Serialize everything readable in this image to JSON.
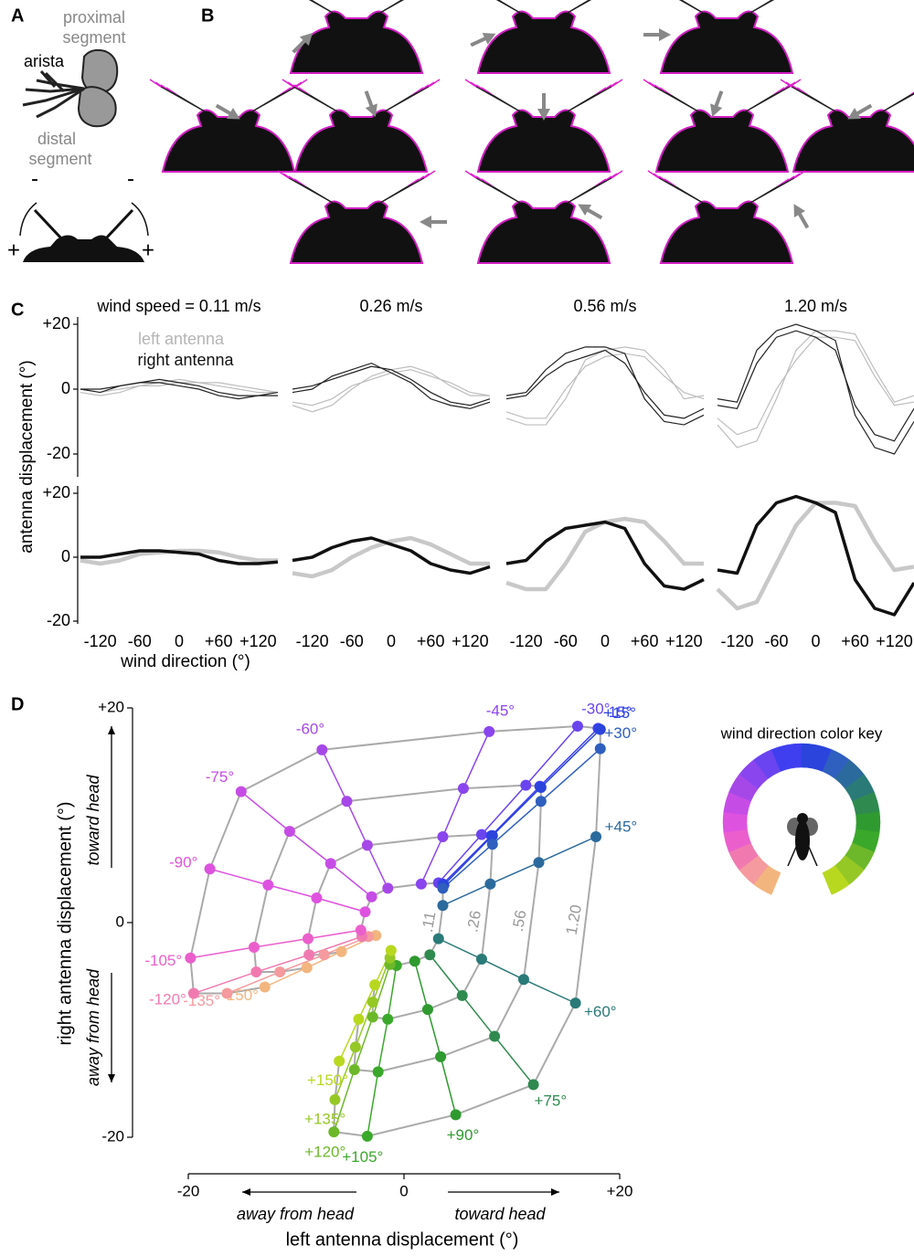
{
  "panel_a": {
    "label": "A",
    "proximal": "proximal",
    "proximal_segment": "segment",
    "arista": "arista",
    "distal": "distal",
    "distal_segment": "segment",
    "signs": [
      "-",
      "-",
      "+",
      "+"
    ]
  },
  "panel_b": {
    "label": "B"
  },
  "panel_c": {
    "label": "C",
    "y_label": "antenna displacement (°)",
    "x_label": "wind direction (°)",
    "legend": [
      {
        "name": "left antenna",
        "color": "#b5b5b5"
      },
      {
        "name": "right antenna",
        "color": "#111111"
      }
    ]
  },
  "chart_data": [
    {
      "type": "line",
      "title": "wind speed = 0.11 m/s",
      "x": [
        -150,
        -120,
        -90,
        -60,
        -30,
        0,
        30,
        60,
        90,
        120,
        150
      ],
      "xlim": [
        -150,
        150
      ],
      "ylim": [
        -20,
        20
      ],
      "xticks": [
        -120,
        -60,
        0,
        {
          "value": 60,
          "label": "+60"
        },
        {
          "value": 120,
          "label": "+120"
        }
      ],
      "yticks": [
        {
          "value": 20,
          "label": "+20"
        },
        0,
        -20
      ],
      "traces": {
        "left": [
          [
            -1,
            -2,
            -1,
            1,
            2,
            3,
            2,
            1,
            0,
            -1,
            -1
          ],
          [
            0,
            -1,
            0,
            1,
            1,
            2,
            2,
            2,
            1,
            0,
            -1
          ]
        ],
        "right": [
          [
            0,
            0,
            1,
            2,
            3,
            2,
            1,
            -1,
            -2,
            -2,
            -2
          ],
          [
            0,
            -1,
            1,
            2,
            2,
            1,
            0,
            -2,
            -3,
            -2,
            -1
          ]
        ]
      },
      "series": [
        {
          "color": "#c8c8c8",
          "values": [
            -1,
            -2,
            -1,
            1,
            1.5,
            2,
            2,
            1.5,
            0,
            -1,
            -1
          ]
        },
        {
          "color": "#111111",
          "values": [
            0,
            0,
            1,
            2,
            2,
            1.5,
            1,
            -1,
            -2,
            -2,
            -1.5
          ]
        }
      ]
    },
    {
      "type": "line",
      "title": "0.26 m/s",
      "x": [
        -150,
        -120,
        -90,
        -60,
        -30,
        0,
        30,
        60,
        90,
        120,
        150
      ],
      "xlim": [
        -150,
        150
      ],
      "ylim": [
        -20,
        20
      ],
      "xticks": [
        -120,
        -60,
        0,
        {
          "value": 60,
          "label": "+60"
        },
        {
          "value": 120,
          "label": "+120"
        }
      ],
      "traces": {
        "left": [
          [
            -5,
            -7,
            -5,
            0,
            4,
            6,
            7,
            5,
            1,
            -2,
            -2
          ],
          [
            -4,
            -5,
            -3,
            1,
            3,
            5,
            6,
            4,
            2,
            -1,
            -2
          ]
        ],
        "right": [
          [
            -1,
            0,
            4,
            6,
            8,
            5,
            2,
            -3,
            -5,
            -6,
            -4
          ],
          [
            0,
            1,
            3,
            5,
            7,
            6,
            3,
            -1,
            -4,
            -5,
            -3
          ]
        ]
      },
      "series": [
        {
          "color": "#c8c8c8",
          "values": [
            -5,
            -6,
            -4,
            0,
            3,
            5,
            6,
            4,
            1,
            -2,
            -2
          ]
        },
        {
          "color": "#111111",
          "values": [
            -1,
            0,
            3,
            5,
            6,
            4,
            2,
            -2,
            -4,
            -5,
            -3
          ]
        }
      ]
    },
    {
      "type": "line",
      "title": "0.56 m/s",
      "x": [
        -150,
        -120,
        -90,
        -60,
        -30,
        0,
        30,
        60,
        90,
        120,
        150
      ],
      "xlim": [
        -150,
        150
      ],
      "ylim": [
        -20,
        20
      ],
      "xticks": [
        -120,
        -60,
        0,
        {
          "value": 60,
          "label": "+60"
        },
        {
          "value": 120,
          "label": "+120"
        }
      ],
      "traces": {
        "left": [
          [
            -9,
            -11,
            -11,
            -3,
            9,
            12,
            13,
            12,
            6,
            -3,
            -2
          ],
          [
            -7,
            -9,
            -9,
            0,
            7,
            10,
            11,
            10,
            4,
            -1,
            -3
          ]
        ],
        "right": [
          [
            -2,
            -1,
            6,
            11,
            13,
            13,
            11,
            -3,
            -10,
            -11,
            -8
          ],
          [
            -3,
            -2,
            4,
            8,
            10,
            12,
            8,
            -1,
            -8,
            -9,
            -6
          ]
        ]
      },
      "series": [
        {
          "color": "#c8c8c8",
          "values": [
            -8,
            -10,
            -10,
            -2,
            8,
            11,
            12,
            11,
            5,
            -2,
            -2
          ]
        },
        {
          "color": "#111111",
          "values": [
            -2,
            -1,
            5,
            9,
            10,
            11,
            9,
            -2,
            -9,
            -10,
            -7
          ]
        }
      ]
    },
    {
      "type": "line",
      "title": "1.20 m/s",
      "x": [
        -150,
        -120,
        -90,
        -60,
        -30,
        0,
        30,
        60,
        90,
        120,
        150
      ],
      "xlim": [
        -150,
        150
      ],
      "ylim": [
        -20,
        20
      ],
      "xticks": [
        -120,
        -60,
        0,
        {
          "value": 60,
          "label": "+60"
        },
        {
          "value": 120,
          "label": "+120"
        }
      ],
      "traces": {
        "left": [
          [
            -11,
            -18,
            -16,
            -3,
            12,
            18,
            18,
            17,
            6,
            -4,
            -2
          ],
          [
            -9,
            -14,
            -12,
            0,
            9,
            16,
            16,
            15,
            4,
            -5,
            -4
          ]
        ],
        "right": [
          [
            -3,
            -4,
            12,
            18,
            20,
            18,
            15,
            -8,
            -18,
            -20,
            -10
          ],
          [
            -5,
            -6,
            8,
            16,
            18,
            16,
            12,
            -5,
            -14,
            -16,
            -6
          ]
        ]
      },
      "series": [
        {
          "color": "#c8c8c8",
          "values": [
            -10,
            -16,
            -14,
            -2,
            10,
            17,
            17,
            16,
            5,
            -4,
            -3
          ]
        },
        {
          "color": "#111111",
          "values": [
            -4,
            -5,
            10,
            17,
            19,
            17,
            14,
            -7,
            -16,
            -18,
            -8
          ]
        }
      ]
    },
    {
      "type": "scatter",
      "label": "D",
      "x_label": "left antenna displacement (°)",
      "y_label": "right antenna displacement (°)",
      "x_annotations": [
        "away from head",
        "toward head"
      ],
      "y_annotations": [
        "toward head",
        "away from head"
      ],
      "xlim": [
        -20,
        20
      ],
      "ylim": [
        -20,
        20
      ],
      "xticks": [
        -20,
        0,
        {
          "value": 20,
          "label": "+20"
        }
      ],
      "yticks": [
        {
          "value": 20,
          "label": "+20"
        },
        0,
        -20
      ],
      "speed_labels": [
        ".11",
        ".26",
        ".56",
        "1.20"
      ],
      "key_title": "wind direction color key",
      "series": [
        {
          "name": "-150°",
          "color": "#f3b57e",
          "x": [
            -2.6,
            -5.8,
            -9.0,
            -12.9
          ],
          "values": [
            -1.2,
            -2.7,
            -4.2,
            -6.0
          ]
        },
        {
          "name": "-135°",
          "color": "#f59a9e",
          "x": [
            -3.3,
            -7.4,
            -11.5,
            -16.4
          ],
          "values": [
            -1.3,
            -3.0,
            -4.6,
            -6.6
          ]
        },
        {
          "name": "-120°",
          "color": "#f07ab0",
          "x": [
            -3.9,
            -8.8,
            -13.7,
            -19.5
          ],
          "values": [
            -1.3,
            -3.0,
            -4.6,
            -6.6
          ]
        },
        {
          "name": "-105°",
          "color": "#ea5fcc",
          "x": [
            -4.0,
            -8.9,
            -13.9,
            -19.8
          ],
          "values": [
            -0.7,
            -1.5,
            -2.3,
            -3.3
          ]
        },
        {
          "name": "-90°",
          "color": "#de52e0",
          "x": [
            -3.6,
            -8.1,
            -12.6,
            -18.0
          ],
          "values": [
            1.0,
            2.3,
            3.5,
            5.0
          ]
        },
        {
          "name": "-75°",
          "color": "#c64ce6",
          "x": [
            -3.0,
            -6.8,
            -10.6,
            -15.1
          ],
          "values": [
            2.4,
            5.5,
            8.5,
            12.2
          ]
        },
        {
          "name": "-60°",
          "color": "#a648e8",
          "x": [
            -1.5,
            -3.4,
            -5.3,
            -7.6
          ],
          "values": [
            3.2,
            7.2,
            11.3,
            16.1
          ]
        },
        {
          "name": "-45°",
          "color": "#8a45ee",
          "x": [
            1.6,
            3.6,
            5.5,
            7.9
          ],
          "values": [
            3.6,
            8.0,
            12.5,
            17.8
          ]
        },
        {
          "name": "-30°",
          "color": "#6a44ef",
          "x": [
            3.2,
            7.2,
            11.3,
            16.1
          ],
          "values": [
            3.7,
            8.2,
            12.8,
            18.3
          ]
        },
        {
          "name": "-15°",
          "color": "#3f3ff0",
          "x": [
            3.6,
            8.1,
            12.6,
            18.0
          ],
          "values": [
            3.6,
            8.1,
            12.7,
            18.1
          ]
        },
        {
          "name": "+15°",
          "color": "#2a44dc",
          "x": [
            3.7,
            8.2,
            12.7,
            18.2
          ],
          "values": [
            3.5,
            8.1,
            12.6,
            18.0
          ]
        },
        {
          "name": "+30°",
          "color": "#2f5fbf",
          "x": [
            3.6,
            8.2,
            12.7,
            18.2
          ],
          "values": [
            3.2,
            7.3,
            11.3,
            16.2
          ]
        },
        {
          "name": "+45°",
          "color": "#2b6a9c",
          "x": [
            3.6,
            8.0,
            12.5,
            17.8
          ],
          "values": [
            1.6,
            3.6,
            5.6,
            8.0
          ]
        },
        {
          "name": "+60°",
          "color": "#2a7a78",
          "x": [
            3.2,
            7.2,
            11.1,
            15.9
          ],
          "values": [
            -1.5,
            -3.4,
            -5.3,
            -7.5
          ]
        },
        {
          "name": "+75°",
          "color": "#2f8a4f",
          "x": [
            2.4,
            5.4,
            8.4,
            12.0
          ],
          "values": [
            -3.0,
            -6.8,
            -10.6,
            -15.1
          ]
        },
        {
          "name": "+90°",
          "color": "#2f9a2f",
          "x": [
            1.0,
            2.2,
            3.4,
            4.8
          ],
          "values": [
            -3.6,
            -8.1,
            -12.5,
            -17.9
          ]
        },
        {
          "name": "+105°",
          "color": "#3aa82a",
          "x": [
            -0.7,
            -1.5,
            -2.4,
            -3.4
          ],
          "values": [
            -4.0,
            -9.0,
            -13.9,
            -19.9
          ]
        },
        {
          "name": "+120°",
          "color": "#6cb82a",
          "x": [
            -1.3,
            -2.9,
            -4.6,
            -6.5
          ],
          "values": [
            -3.9,
            -8.8,
            -13.7,
            -19.5
          ]
        },
        {
          "name": "+135°",
          "color": "#95c825",
          "x": [
            -1.3,
            -2.9,
            -4.5,
            -6.4
          ],
          "values": [
            -3.3,
            -7.4,
            -11.6,
            -16.5
          ]
        },
        {
          "name": "+150°",
          "color": "#b8d820",
          "x": [
            -1.2,
            -2.7,
            -4.2,
            -6.0
          ],
          "values": [
            -2.6,
            -5.8,
            -9.0,
            -12.9
          ]
        }
      ]
    }
  ]
}
